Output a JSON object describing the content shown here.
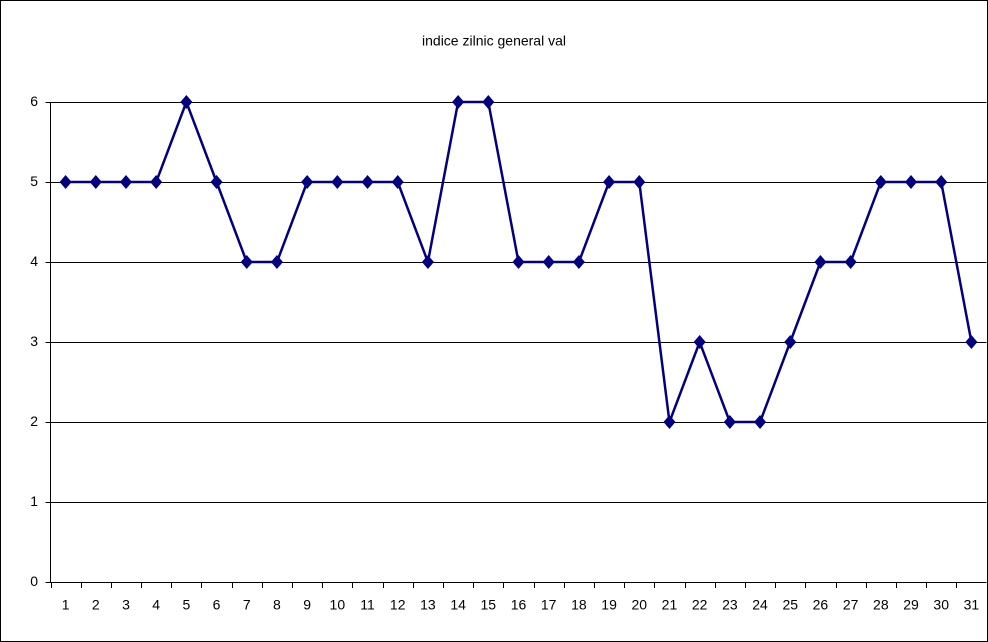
{
  "chart_data": {
    "type": "line",
    "title": "indice zilnic general val",
    "categories": [
      "1",
      "2",
      "3",
      "4",
      "5",
      "6",
      "7",
      "8",
      "9",
      "10",
      "11",
      "12",
      "13",
      "14",
      "15",
      "16",
      "17",
      "18",
      "19",
      "20",
      "21",
      "22",
      "23",
      "24",
      "25",
      "26",
      "27",
      "28",
      "29",
      "30",
      "31"
    ],
    "values": [
      5,
      5,
      5,
      5,
      6,
      5,
      4,
      4,
      5,
      5,
      5,
      5,
      4,
      6,
      6,
      4,
      4,
      4,
      5,
      5,
      2,
      3,
      2,
      2,
      3,
      4,
      4,
      5,
      5,
      5,
      3
    ],
    "color": "#000080",
    "marker": "diamond",
    "ylim": [
      0,
      6
    ],
    "yticks": [
      0,
      1,
      2,
      3,
      4,
      5,
      6
    ],
    "grid": true
  }
}
